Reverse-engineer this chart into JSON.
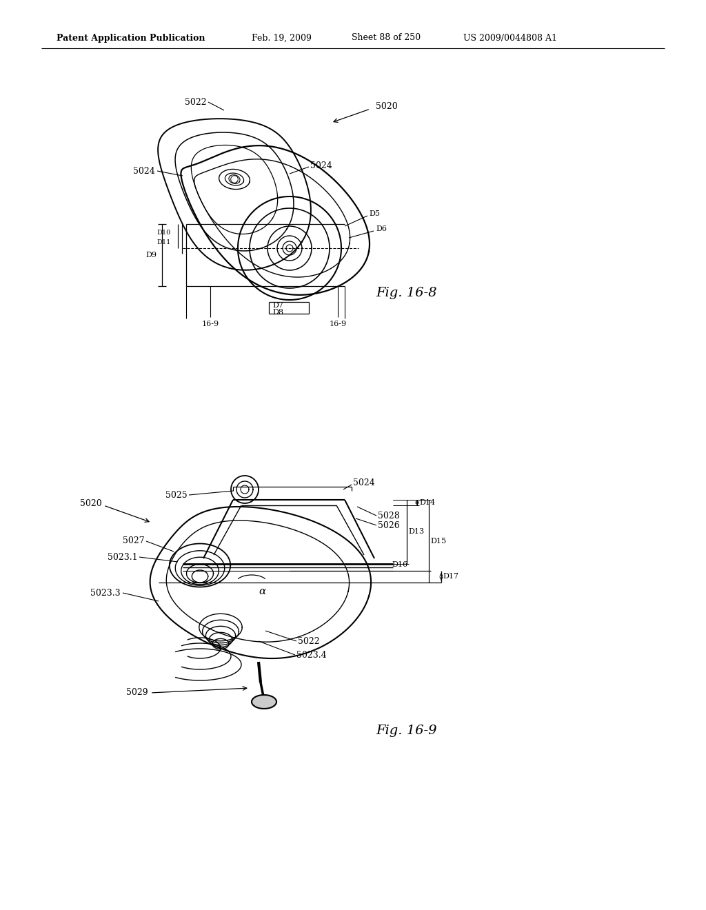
{
  "background_color": "#ffffff",
  "header_text": "Patent Application Publication",
  "header_date": "Feb. 19, 2009",
  "header_sheet": "Sheet 88 of 250",
  "header_patent": "US 2009/0044808 A1",
  "fig1_label": "Fig. 16-8",
  "fig2_label": "Fig. 16-9",
  "line_color": "#000000",
  "font_size_header": 9,
  "font_size_fig": 14,
  "font_size_annotation": 9
}
